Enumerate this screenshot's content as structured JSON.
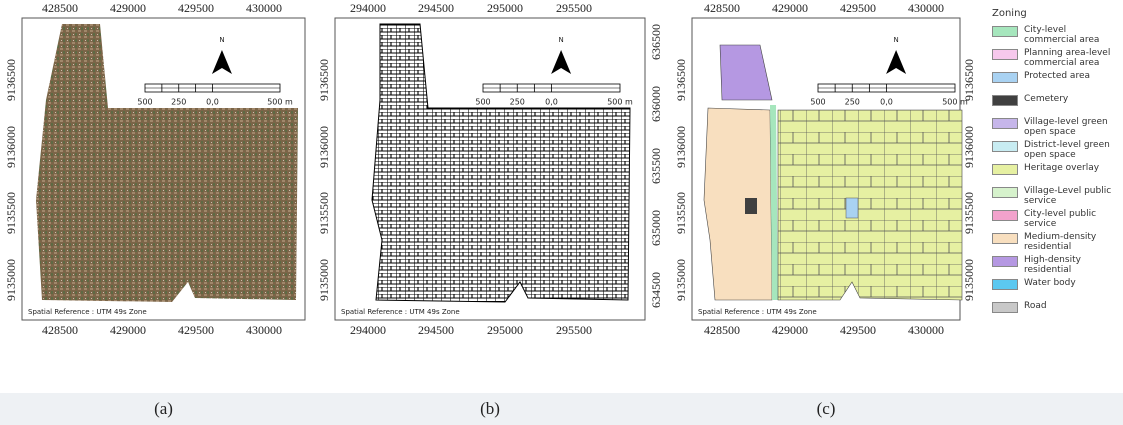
{
  "panels": [
    {
      "caption": "(a)",
      "x_top": [
        428500,
        429000,
        429500,
        430000
      ],
      "x_bottom": [
        428500,
        429000,
        429500,
        430000
      ],
      "y_left": [
        9136500,
        9136000,
        9135500,
        9135000
      ],
      "scale_labels": [
        "500",
        "250",
        "0,0",
        "500 m"
      ],
      "north": "N",
      "spatial_reference": "Spatial Reference : UTM 49s Zone"
    },
    {
      "caption": "(b)",
      "x_top": [
        294000,
        294500,
        295000,
        295500
      ],
      "x_bottom": [
        294000,
        294500,
        295000,
        295500
      ],
      "y_left": [
        9136500,
        9136000,
        9135500,
        9135000
      ],
      "y_right": [
        636500,
        636000,
        635500,
        635000,
        634500
      ],
      "scale_labels": [
        "500",
        "250",
        "0,0",
        "500 m"
      ],
      "north": "N",
      "spatial_reference": "Spatial Reference : UTM 49s Zone"
    },
    {
      "caption": "(c)",
      "x_top": [
        428500,
        429000,
        429500,
        430000
      ],
      "x_bottom": [
        428500,
        429000,
        429500,
        430000
      ],
      "y_left": [
        9136500,
        9136000,
        9135500,
        9135000
      ],
      "y_right": [
        9136500,
        9136000,
        9135500,
        9135000
      ],
      "scale_labels": [
        "500",
        "250",
        "0,0",
        "500 m"
      ],
      "north": "N",
      "spatial_reference": "Spatial Reference : UTM 49s Zone"
    }
  ],
  "legend": {
    "title": "Zoning",
    "items": [
      {
        "label": "City-level commercial area",
        "color": "#a6e6bd"
      },
      {
        "label": "Planning area-level commercial area",
        "color": "#f6c8ec"
      },
      {
        "label": "Protected area",
        "color": "#a9d2f2"
      },
      {
        "label": "Cemetery",
        "color": "#404040"
      },
      {
        "label": "Village-level green open space",
        "color": "#c6b6ea"
      },
      {
        "label": "District-level green open space",
        "color": "#c8ecf2"
      },
      {
        "label": "Heritage overlay",
        "color": "#e6f0a2"
      },
      {
        "label": "Village-Level public service",
        "color": "#d6f2cc"
      },
      {
        "label": "City-level public service",
        "color": "#f2a2cc"
      },
      {
        "label": "Medium-density residential",
        "color": "#f8dfbf"
      },
      {
        "label": "High-density residential",
        "color": "#b598e2"
      },
      {
        "label": "Water body",
        "color": "#5cc8f0"
      },
      {
        "label": "Road",
        "color": "#c8c8c8"
      }
    ]
  }
}
